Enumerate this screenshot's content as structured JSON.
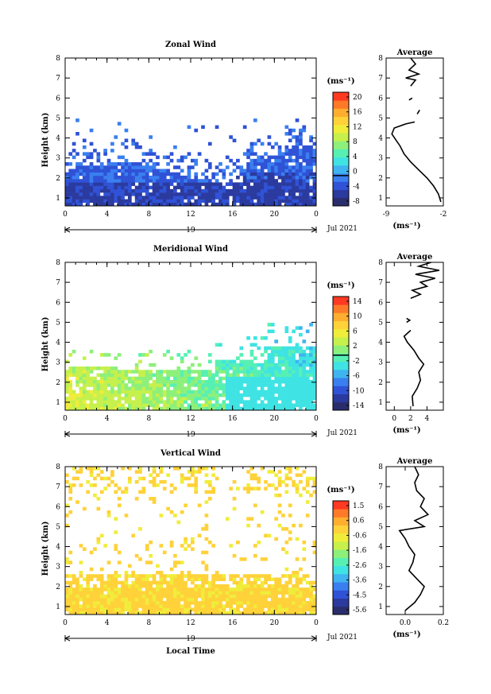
{
  "figure": {
    "xlabel": "Local Time",
    "date_label": "Jul 2021",
    "day_label": "19",
    "avg_title": "Average",
    "unit_label": "(ms⁻¹)"
  },
  "colors": {
    "scale": [
      "#2a2d6b",
      "#2b3a9e",
      "#2f52d6",
      "#3a7ff0",
      "#3fb4f0",
      "#3fe3e3",
      "#57f0b3",
      "#8df07a",
      "#c6f04c",
      "#f0ed3a",
      "#ffd23a",
      "#ffad2f",
      "#ff7a28",
      "#ff3a22"
    ]
  },
  "chart_data": [
    {
      "type": "heatmap",
      "title": "Zonal Wind",
      "ylabel": "Height (km)",
      "xlim": [
        0,
        24
      ],
      "ylim": [
        0.6,
        8
      ],
      "x_ticks": [
        "0",
        "4",
        "8",
        "12",
        "16",
        "20",
        "0"
      ],
      "y_ticks": [
        "1",
        "2",
        "3",
        "4",
        "5",
        "6",
        "7",
        "8"
      ],
      "colorbar": {
        "min": -8,
        "max": 22,
        "ticks": [
          "20",
          "16",
          "12",
          "8",
          "4",
          "0",
          "-4",
          "-8"
        ],
        "marker": 0
      },
      "average": {
        "xlim": [
          -9,
          -2
        ],
        "x_ticks": [
          "-9",
          "-2"
        ],
        "profile": [
          [
            -2.3,
            0.8
          ],
          [
            -2.6,
            1.2
          ],
          [
            -3.2,
            1.6
          ],
          [
            -4.0,
            2.0
          ],
          [
            -5.0,
            2.4
          ],
          [
            -6.0,
            2.8
          ],
          [
            -6.8,
            3.2
          ],
          [
            -7.3,
            3.6
          ],
          [
            -7.8,
            3.9
          ],
          [
            -8.3,
            4.2
          ],
          [
            -8.0,
            4.5
          ],
          [
            -6.6,
            4.7
          ],
          [
            -5.5,
            4.8
          ]
        ],
        "profile_upper": [
          [
            -6.0,
            6.6
          ],
          [
            -5.4,
            6.9
          ],
          [
            -6.6,
            7.0
          ],
          [
            -5.0,
            7.2
          ],
          [
            -6.2,
            7.4
          ],
          [
            -5.4,
            7.7
          ],
          [
            -6.0,
            8.0
          ]
        ],
        "fragments": [
          [
            [
              -6.2,
              5.9
            ],
            [
              -5.8,
              6.0
            ]
          ],
          [
            [
              -5.2,
              5.2
            ],
            [
              -4.9,
              5.4
            ]
          ]
        ]
      },
      "field": {
        "top": 4.9,
        "base": -4.5,
        "spread": 2.0
      }
    },
    {
      "type": "heatmap",
      "title": "Meridional Wind",
      "ylabel": "Height (km)",
      "xlim": [
        0,
        24
      ],
      "ylim": [
        0.6,
        8
      ],
      "x_ticks": [
        "0",
        "4",
        "8",
        "12",
        "16",
        "20",
        "0"
      ],
      "y_ticks": [
        "1",
        "2",
        "3",
        "4",
        "5",
        "6",
        "7",
        "8"
      ],
      "colorbar": {
        "min": -15,
        "max": 16,
        "ticks": [
          "14",
          "10",
          "6",
          "2",
          "-2",
          "-6",
          "-10",
          "-14"
        ],
        "marker": 0
      },
      "average": {
        "xlim": [
          -1,
          6
        ],
        "x_ticks": [
          "0",
          "2",
          "4"
        ],
        "profile": [
          [
            2.3,
            0.8
          ],
          [
            2.2,
            1.3
          ],
          [
            2.8,
            1.7
          ],
          [
            3.2,
            2.1
          ],
          [
            3.0,
            2.5
          ],
          [
            3.6,
            2.9
          ],
          [
            3.0,
            3.2
          ],
          [
            2.4,
            3.6
          ],
          [
            1.6,
            4.0
          ],
          [
            1.2,
            4.3
          ],
          [
            2.0,
            4.6
          ]
        ],
        "profile_upper": [
          [
            2.0,
            6.2
          ],
          [
            3.2,
            6.4
          ],
          [
            2.2,
            6.6
          ],
          [
            4.0,
            6.8
          ],
          [
            3.2,
            7.0
          ],
          [
            5.0,
            7.2
          ],
          [
            2.6,
            7.4
          ],
          [
            5.5,
            7.6
          ],
          [
            3.0,
            7.8
          ],
          [
            4.5,
            8.0
          ]
        ],
        "fragments": [
          [
            [
              1.5,
              5.0
            ],
            [
              1.9,
              5.1
            ],
            [
              1.5,
              5.2
            ]
          ]
        ]
      },
      "field": {
        "top": 4.7,
        "base": 4.0,
        "spread": 3.0
      }
    },
    {
      "type": "heatmap",
      "title": "Vertical Wind",
      "ylabel": "Height (km)",
      "xlim": [
        0,
        24
      ],
      "ylim": [
        0.6,
        8
      ],
      "x_ticks": [
        "0",
        "4",
        "8",
        "12",
        "16",
        "20",
        "0"
      ],
      "y_ticks": [
        "1",
        "2",
        "3",
        "4",
        "5",
        "6",
        "7",
        "8"
      ],
      "colorbar": {
        "min": -6,
        "max": 2,
        "ticks": [
          "1.5",
          "0.6",
          "-0.6",
          "-1.6",
          "-2.6",
          "-3.6",
          "-4.5",
          "-5.6"
        ],
        "marker": null
      },
      "average": {
        "xlim": [
          -0.1,
          0.2
        ],
        "x_ticks": [
          "0.0",
          "0.2"
        ],
        "profile": [
          [
            0.0,
            0.8
          ],
          [
            0.05,
            1.2
          ],
          [
            0.08,
            1.6
          ],
          [
            0.1,
            2.0
          ],
          [
            0.06,
            2.4
          ],
          [
            0.02,
            2.8
          ],
          [
            0.04,
            3.2
          ],
          [
            0.05,
            3.6
          ],
          [
            0.02,
            4.0
          ],
          [
            0.0,
            4.4
          ],
          [
            -0.03,
            4.8
          ],
          [
            0.1,
            5.0
          ],
          [
            0.05,
            5.3
          ],
          [
            0.12,
            5.6
          ],
          [
            0.08,
            6.0
          ],
          [
            0.1,
            6.4
          ],
          [
            0.06,
            6.8
          ],
          [
            0.05,
            7.2
          ],
          [
            0.07,
            7.6
          ],
          [
            0.05,
            8.0
          ]
        ],
        "profile_upper": [],
        "fragments": []
      },
      "field": {
        "top": 8.0,
        "base": 1.2,
        "spread": 0.7
      }
    }
  ]
}
